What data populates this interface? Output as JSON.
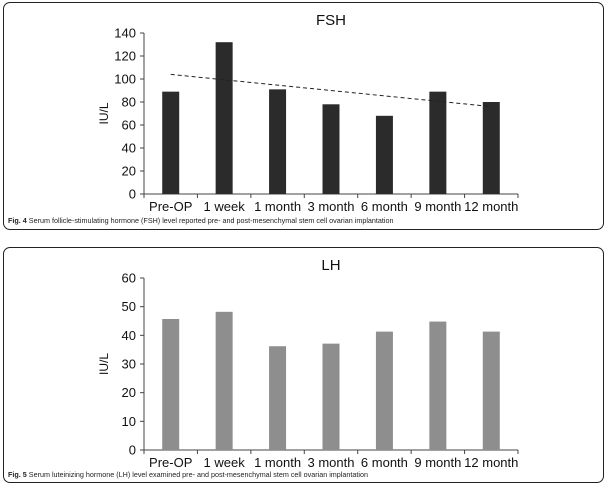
{
  "colors": {
    "panel_border": "#222222",
    "bar_fsh": "#2b2b2b",
    "bar_lh": "#8e8e8e",
    "axis": "#444444"
  },
  "chart_data": [
    {
      "type": "bar",
      "title": "FSH",
      "ylabel": "IU/L",
      "xlabel": "",
      "categories": [
        "Pre-OP",
        "1 week",
        "1 month",
        "3 month",
        "6 month",
        "9 month",
        "12 month"
      ],
      "values": [
        89,
        132,
        91,
        78,
        68,
        89,
        80
      ],
      "ylim": [
        0,
        140
      ],
      "yticks": [
        0,
        20,
        40,
        60,
        80,
        100,
        120,
        140
      ],
      "trendline": {
        "style": "dashed",
        "start": 104,
        "end": 76
      },
      "grid": false,
      "legend": "none",
      "caption_label": "Fig. 4",
      "caption_text": "Serum follicle-stimulating hormone (FSH) level reported pre- and post-mesenchymal stem cell ovarian implantation"
    },
    {
      "type": "bar",
      "title": "LH",
      "ylabel": "IU/L",
      "xlabel": "",
      "categories": [
        "Pre-OP",
        "1 week",
        "1 month",
        "3 month",
        "6 month",
        "9 month",
        "12 month"
      ],
      "values": [
        45.7,
        48.2,
        36.2,
        37.1,
        41.3,
        44.8,
        41.3
      ],
      "ylim": [
        0,
        60
      ],
      "yticks": [
        0,
        10,
        20,
        30,
        40,
        50,
        60
      ],
      "grid": false,
      "legend": "none",
      "caption_label": "Fig. 5",
      "caption_text": "Serum luteinizing hormone (LH) level examined pre- and post-mesenchymal stem cell ovarian implantation"
    }
  ]
}
